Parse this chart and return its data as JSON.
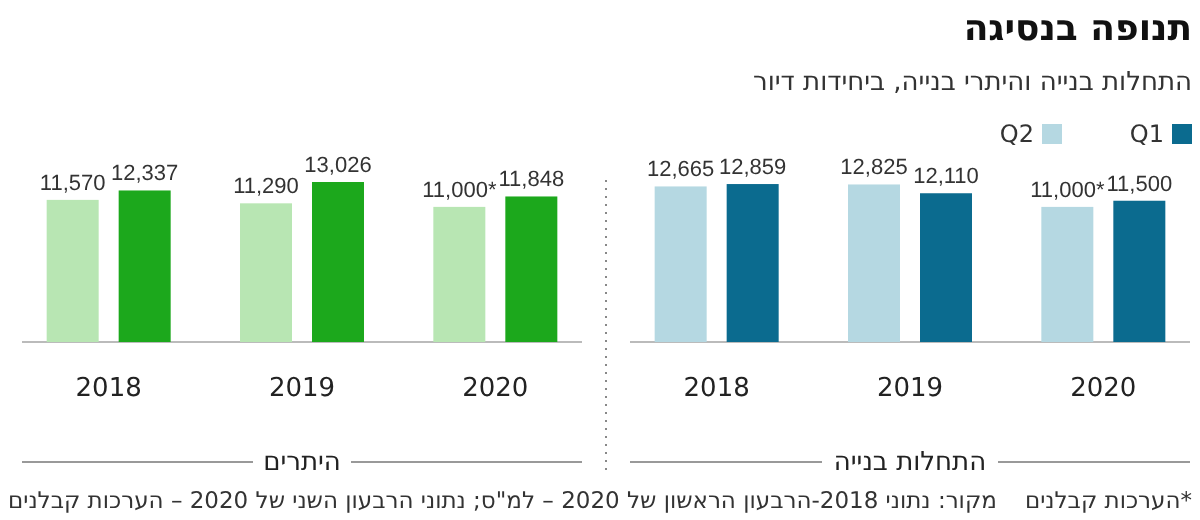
{
  "chart_data": [
    {
      "type": "bar",
      "title": "תנופה בנסיגה",
      "subtitle": "התחלות בנייה והיתרי בנייה, ביחידות דיור",
      "xlabel": "התחלות בנייה",
      "legend": "top right",
      "categories": [
        "2018",
        "2019",
        "2020"
      ],
      "series": [
        {
          "name": "Q1",
          "color": "#0b6b8f",
          "values": [
            12859,
            12110,
            11500
          ],
          "value_labels": [
            "12,859",
            "12,110",
            "11,500"
          ]
        },
        {
          "name": "Q2",
          "color": "#b5d8e2",
          "values": [
            12665,
            12825,
            11000
          ],
          "value_labels": [
            "12,665",
            "12,825",
            "11,000*"
          ]
        }
      ],
      "annotations": [
        "*הערכות קבלנים",
        "מקור: נתוני 2018-הרבעון הראשון של 2020 – למ\"ס; נתוני הרבעון השני של 2020 – הערכות קבלנים"
      ]
    },
    {
      "type": "bar",
      "xlabel": "היתרים",
      "categories": [
        "2018",
        "2019",
        "2020"
      ],
      "series": [
        {
          "color": "#1ca81c",
          "values": [
            12337,
            13026,
            11848
          ],
          "value_labels": [
            "12,337",
            "13,026",
            "11,848"
          ]
        },
        {
          "color": "#b8e6b3",
          "values": [
            11570,
            11290,
            11000
          ],
          "value_labels": [
            "11,570",
            "11,290",
            "11,000*"
          ]
        }
      ]
    }
  ]
}
